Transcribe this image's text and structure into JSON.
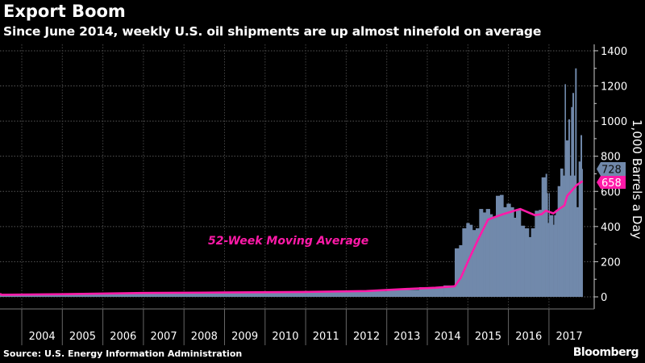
{
  "title": "Export Boom",
  "subtitle": "Since June 2014, weekly U.S. oil shipments are up almost ninefold on average",
  "source": "Source: U.S. Energy Information Administration",
  "brand": "Bloomberg",
  "colors": {
    "bars": "#7189ab",
    "moving_average": "#ff1aa8",
    "background": "#000000"
  },
  "chart_data": {
    "type": "bar",
    "ylabel": "1,000 Barrels a Day",
    "ylim": [
      0,
      1400
    ],
    "yticks": [
      0,
      200,
      400,
      600,
      800,
      1000,
      1200,
      1400
    ],
    "xlim": [
      2003,
      2018
    ],
    "xticks": [
      "2004",
      "2005",
      "2006",
      "2007",
      "2008",
      "2009",
      "2010",
      "2011",
      "2012",
      "2013",
      "2014",
      "2015",
      "2016",
      "2017"
    ],
    "grid": true,
    "annotation": "52-Week Moving Average",
    "last_value_labels": {
      "weekly": "728",
      "moving_average": "658"
    },
    "series": [
      {
        "kind": "bars",
        "points": [
          [
            2003.0,
            15
          ],
          [
            2005.0,
            18
          ],
          [
            2007.0,
            22
          ],
          [
            2009.0,
            25
          ],
          [
            2011.0,
            28
          ],
          [
            2012.0,
            32
          ],
          [
            2013.0,
            40
          ],
          [
            2013.8,
            55
          ],
          [
            2014.4,
            65
          ],
          [
            2014.676,
            276
          ],
          [
            2014.782,
            294
          ],
          [
            2014.862,
            390
          ],
          [
            2014.961,
            420
          ],
          [
            2015.041,
            410
          ],
          [
            2015.113,
            380
          ],
          [
            2015.193,
            390
          ],
          [
            2015.279,
            500
          ],
          [
            2015.372,
            480
          ],
          [
            2015.445,
            500
          ],
          [
            2015.544,
            470
          ],
          [
            2015.61,
            450
          ],
          [
            2015.69,
            575
          ],
          [
            2015.789,
            580
          ],
          [
            2015.876,
            510
          ],
          [
            2015.955,
            530
          ],
          [
            2016.055,
            510
          ],
          [
            2016.134,
            450
          ],
          [
            2016.187,
            495
          ],
          [
            2016.306,
            405
          ],
          [
            2016.399,
            390
          ],
          [
            2016.505,
            340
          ],
          [
            2016.558,
            390
          ],
          [
            2016.651,
            490
          ],
          [
            2016.75,
            495
          ],
          [
            2016.817,
            680
          ],
          [
            2016.916,
            700
          ],
          [
            2016.949,
            590
          ],
          [
            2016.969,
            420
          ],
          [
            2016.996,
            590
          ],
          [
            2017.015,
            465
          ],
          [
            2017.102,
            410
          ],
          [
            2017.128,
            465
          ],
          [
            2017.168,
            495
          ],
          [
            2017.214,
            630
          ],
          [
            2017.28,
            730
          ],
          [
            2017.347,
            690
          ],
          [
            2017.387,
            1210
          ],
          [
            2017.413,
            890
          ],
          [
            2017.479,
            1010
          ],
          [
            2017.512,
            690
          ],
          [
            2017.545,
            1080
          ],
          [
            2017.579,
            1160
          ],
          [
            2017.612,
            690
          ],
          [
            2017.645,
            1300
          ],
          [
            2017.678,
            510
          ],
          [
            2017.731,
            770
          ],
          [
            2017.778,
            920
          ],
          [
            2017.811,
            728
          ],
          [
            2017.83,
            728
          ]
        ]
      },
      {
        "kind": "line",
        "name": "52-Week Moving Average",
        "points": [
          [
            2003.0,
            18
          ],
          [
            2003.5,
            12
          ],
          [
            2005.0,
            15
          ],
          [
            2007.0,
            22
          ],
          [
            2009.0,
            25
          ],
          [
            2011.0,
            28
          ],
          [
            2012.5,
            33
          ],
          [
            2013.5,
            45
          ],
          [
            2014.2,
            52
          ],
          [
            2014.676,
            60
          ],
          [
            2014.83,
            110
          ],
          [
            2015.0,
            200
          ],
          [
            2015.26,
            330
          ],
          [
            2015.5,
            440
          ],
          [
            2015.86,
            470
          ],
          [
            2016.29,
            500
          ],
          [
            2016.65,
            465
          ],
          [
            2016.82,
            470
          ],
          [
            2016.92,
            490
          ],
          [
            2017.11,
            475
          ],
          [
            2017.25,
            500
          ],
          [
            2017.38,
            520
          ],
          [
            2017.45,
            575
          ],
          [
            2017.68,
            635
          ],
          [
            2017.83,
            658
          ]
        ]
      }
    ]
  }
}
